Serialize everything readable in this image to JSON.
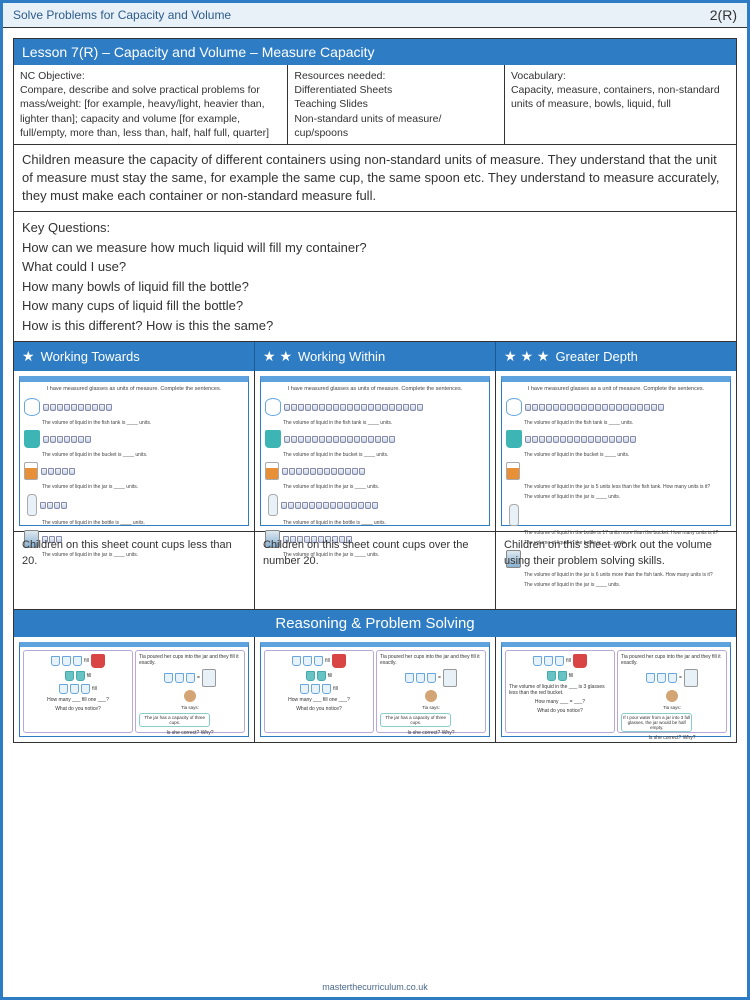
{
  "header": {
    "title": "Solve Problems for Capacity and Volume",
    "page": "2(R)"
  },
  "lesson": {
    "title": "Lesson 7(R) – Capacity and Volume – Measure Capacity",
    "nc": {
      "label": "NC Objective:",
      "text": "Compare, describe and solve practical problems for mass/weight: [for example, heavy/light, heavier than, lighter than]; capacity and volume [for example, full/empty, more than, less than, half, half full, quarter]"
    },
    "resources": {
      "label": "Resources needed:",
      "text": "Differentiated Sheets\nTeaching Slides\nNon-standard units of measure/ cup/spoons"
    },
    "vocab": {
      "label": "Vocabulary:",
      "text": "Capacity, measure, containers, non-standard units of measure, bowls, liquid, full"
    },
    "description": "Children measure the capacity of different containers using non-standard units of measure. They understand that the unit of measure must stay the same, for example the same cup, the same spoon etc. They understand to measure accurately, they must make each container or non-standard measure full.",
    "keyq": {
      "label": "Key Questions:",
      "q1": "How can we measure how much liquid will fill my container?",
      "q2": "What could I use?",
      "q3": "How many bowls of liquid fill the bottle?",
      "q4": "How many cups of liquid fill the bottle?",
      "q5": "How is this different? How is this the same?"
    }
  },
  "levels": {
    "l1": {
      "title": "Working Towards",
      "stars": "★",
      "text": "Children on this sheet count cups less than 20."
    },
    "l2": {
      "title": "Working Within",
      "stars": "★ ★",
      "text": "Children on this sheet count cups over the number 20."
    },
    "l3": {
      "title": "Greater Depth",
      "stars": "★ ★ ★",
      "text": "Children on this sheet work out the volume using their problem solving skills."
    }
  },
  "rps": {
    "title": "Reasoning & Problem Solving"
  },
  "footer": "masterthecurriculum.co.uk",
  "colors": {
    "primary": "#2e7dc4",
    "header_bg": "#e8f0f8"
  }
}
